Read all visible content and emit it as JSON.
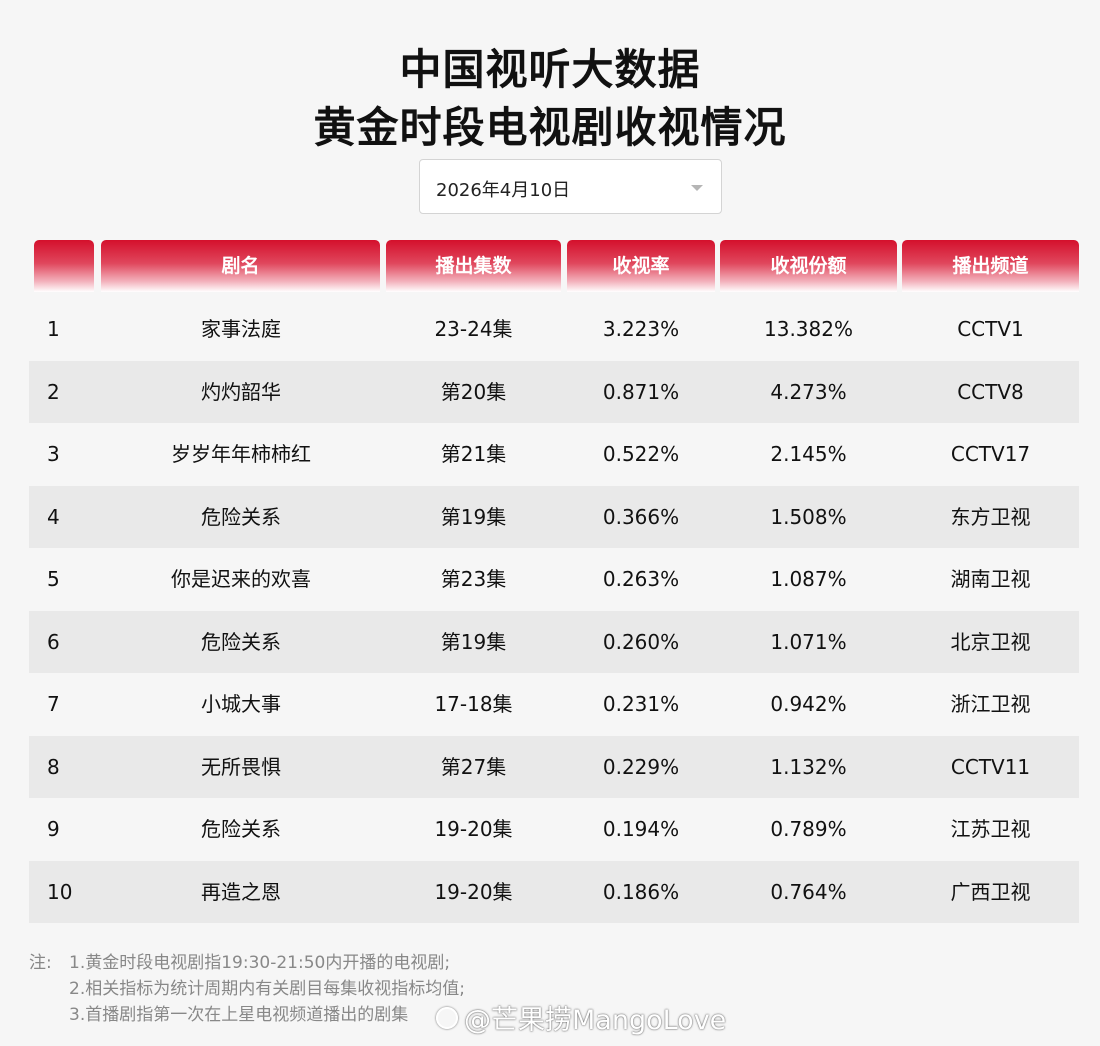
{
  "title_line1": "中国视听大数据",
  "title_line2": "黄金时段电视剧收视情况",
  "date_select": {
    "value": "2026年4月10日"
  },
  "table": {
    "headers": [
      "",
      "剧名",
      "播出集数",
      "收视率",
      "收视份额",
      "播出频道"
    ],
    "rows": [
      {
        "rank": "1",
        "name": "家事法庭",
        "episodes": "23-24集",
        "rating": "3.223%",
        "share": "13.382%",
        "channel": "CCTV1"
      },
      {
        "rank": "2",
        "name": "灼灼韶华",
        "episodes": "第20集",
        "rating": "0.871%",
        "share": "4.273%",
        "channel": "CCTV8"
      },
      {
        "rank": "3",
        "name": "岁岁年年柿柿红",
        "episodes": "第21集",
        "rating": "0.522%",
        "share": "2.145%",
        "channel": "CCTV17"
      },
      {
        "rank": "4",
        "name": "危险关系",
        "episodes": "第19集",
        "rating": "0.366%",
        "share": "1.508%",
        "channel": "东方卫视"
      },
      {
        "rank": "5",
        "name": "你是迟来的欢喜",
        "episodes": "第23集",
        "rating": "0.263%",
        "share": "1.087%",
        "channel": "湖南卫视"
      },
      {
        "rank": "6",
        "name": "危险关系",
        "episodes": "第19集",
        "rating": "0.260%",
        "share": "1.071%",
        "channel": "北京卫视"
      },
      {
        "rank": "7",
        "name": "小城大事",
        "episodes": "17-18集",
        "rating": "0.231%",
        "share": "0.942%",
        "channel": "浙江卫视"
      },
      {
        "rank": "8",
        "name": "无所畏惧",
        "episodes": "第27集",
        "rating": "0.229%",
        "share": "1.132%",
        "channel": "CCTV11"
      },
      {
        "rank": "9",
        "name": "危险关系",
        "episodes": "19-20集",
        "rating": "0.194%",
        "share": "0.789%",
        "channel": "江苏卫视"
      },
      {
        "rank": "10",
        "name": "再造之恩",
        "episodes": "19-20集",
        "rating": "0.186%",
        "share": "0.764%",
        "channel": "广西卫视"
      }
    ]
  },
  "notes": {
    "prefix": "注:",
    "lines": [
      "1.黄金时段电视剧指19:30-21:50内开播的电视剧;",
      "2.相关指标为统计周期内有关剧目每集收视指标均值;",
      "3.首播剧指第一次在上星电视频道播出的剧集"
    ]
  },
  "watermark": {
    "text": "@芒果捞MangoLove",
    "logo_icon": "weibo-logo-icon"
  },
  "colors": {
    "header_red": "#d4102c",
    "row_shade": "#e9e9e9",
    "background": "#f6f6f6"
  }
}
